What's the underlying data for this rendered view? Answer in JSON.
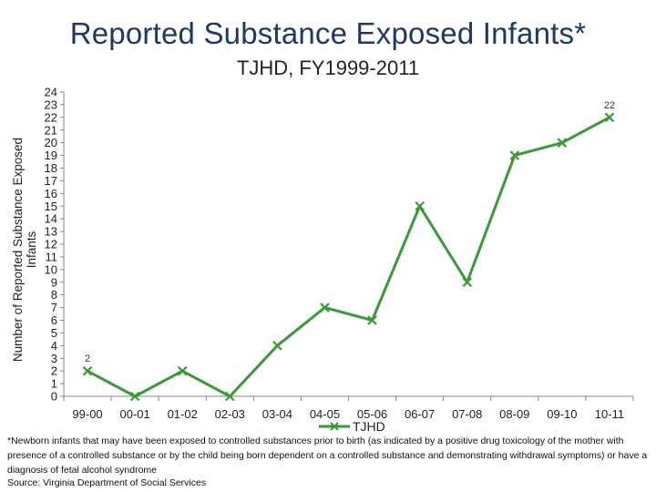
{
  "title": "Reported Substance Exposed Infants*",
  "subtitle": "TJHD, FY1999-2011",
  "footnote": "*Newborn infants that may have been exposed to controlled substances prior to birth (as indicated by a positive drug toxicology of the mother with presence of a controlled substance or by the child being born dependent on a controlled substance and demonstrating withdrawal symptoms) or have a diagnosis of fetal alcohol syndrome",
  "source": "Source: Virginia Department of Social Services",
  "colors": {
    "series": "#3a9a3a",
    "title": "#1f3864"
  },
  "chart_data": {
    "type": "line",
    "title": "TJHD, FY1999-2011",
    "xlabel": "",
    "ylabel": "Number of Reported Substance Exposed Infants",
    "ylim": [
      0,
      24
    ],
    "yticks": [
      0,
      1,
      2,
      3,
      4,
      5,
      6,
      7,
      8,
      9,
      10,
      11,
      12,
      13,
      14,
      15,
      16,
      17,
      18,
      19,
      20,
      21,
      22,
      23,
      24
    ],
    "grid": false,
    "legend": "bottom",
    "categories": [
      "99-00",
      "00-01",
      "01-02",
      "02-03",
      "03-04",
      "04-05",
      "05-06",
      "06-07",
      "07-08",
      "08-09",
      "09-10",
      "10-11"
    ],
    "series": [
      {
        "name": "TJHD",
        "values": [
          2,
          0,
          2,
          0,
          4,
          7,
          6,
          15,
          9,
          19,
          20,
          22
        ],
        "marker": "x"
      }
    ],
    "data_labels": [
      {
        "index": 0,
        "text": "2"
      },
      {
        "index": 11,
        "text": "22"
      }
    ]
  }
}
